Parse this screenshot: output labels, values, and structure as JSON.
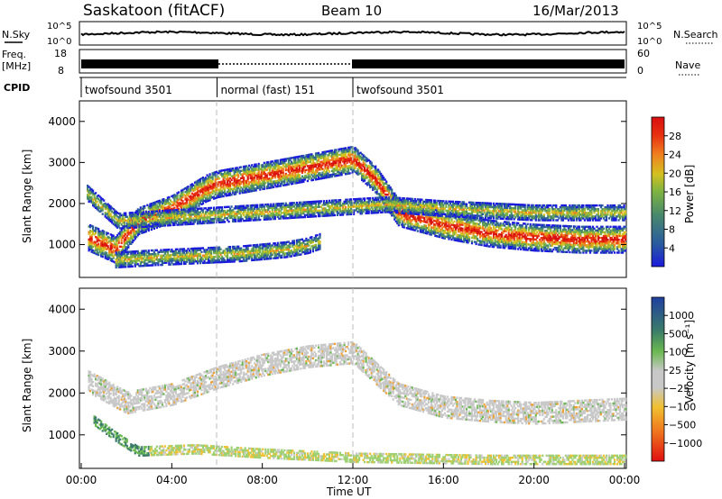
{
  "header": {
    "station": "Saskatoon (fitACF)",
    "beam": "Beam 10",
    "date": "16/Mar/2013"
  },
  "status_panel": {
    "nsky_label": "N.Sky",
    "nsky_tick_top": "10^5",
    "nsky_tick_bottom": "10^0",
    "nsearch_label": "N.Search",
    "nsearch_tick_top": "10^5",
    "nsearch_tick_bottom": "10^0",
    "freq_label_line1": "Freq.",
    "freq_label_line2": "[MHz]",
    "freq_tick_top": "18",
    "freq_tick_bottom": "8",
    "nave_label": "Nave",
    "nave_tick_top": "60",
    "nave_tick_bottom": "0",
    "cpid_label": "CPID",
    "cpid_segments": [
      {
        "label": "twofsound 3501",
        "start_hr": 0,
        "end_hr": 6
      },
      {
        "label": "normal (fast) 151",
        "start_hr": 6,
        "end_hr": 12
      },
      {
        "label": "twofsound 3501",
        "start_hr": 12,
        "end_hr": 24
      }
    ]
  },
  "chart_data": [
    {
      "type": "heatmap",
      "panel": "power",
      "ylabel": "Slant Range [km]",
      "xlim_hours": [
        0,
        24
      ],
      "ylim": [
        200,
        4500
      ],
      "y_ticks": [
        "1000",
        "2000",
        "3000",
        "4000"
      ],
      "colorbar_label": "Power [dB]",
      "colorbar_ticks": [
        "4",
        "8",
        "12",
        "16",
        "20",
        "24",
        "28"
      ],
      "colorbar_colors": [
        "#1a1adc",
        "#2a5aa0",
        "#4a8a6a",
        "#7cb342",
        "#d4c020",
        "#f08020",
        "#e83010",
        "#d81010"
      ],
      "echo_bands": [
        {
          "name": "main",
          "points": [
            [
              0.3,
              1200
            ],
            [
              1.5,
              900
            ],
            [
              2.5,
              1600
            ],
            [
              4,
              1900
            ],
            [
              5.5,
              2400
            ],
            [
              6,
              2500
            ],
            [
              8,
              2700
            ],
            [
              10,
              2900
            ],
            [
              11,
              3000
            ],
            [
              12,
              3100
            ],
            [
              13,
              2600
            ],
            [
              14,
              1800
            ],
            [
              16,
              1500
            ],
            [
              18,
              1300
            ],
            [
              20,
              1200
            ],
            [
              22,
              1150
            ],
            [
              24,
              1150
            ]
          ]
        },
        {
          "name": "upper",
          "points": [
            [
              0.2,
              2300
            ],
            [
              0.8,
              2000
            ],
            [
              1.6,
              1600
            ],
            [
              13.5,
              2000
            ],
            [
              16,
              1900
            ],
            [
              20,
              1800
            ],
            [
              24,
              1800
            ]
          ]
        },
        {
          "name": "lower",
          "points": [
            [
              1.5,
              650
            ],
            [
              3,
              700
            ],
            [
              5,
              750
            ],
            [
              7,
              800
            ],
            [
              9,
              900
            ],
            [
              10,
              1000
            ],
            [
              10.5,
              1100
            ]
          ]
        }
      ]
    },
    {
      "type": "heatmap",
      "panel": "velocity",
      "ylabel": "Slant Range [km]",
      "xlabel": "Time UT",
      "xlim_hours": [
        0,
        24
      ],
      "ylim": [
        200,
        4500
      ],
      "x_ticks": [
        "00:00",
        "04:00",
        "08:00",
        "12:00",
        "16:00",
        "20:00",
        "00:00"
      ],
      "y_ticks": [
        "1000",
        "2000",
        "3000",
        "4000"
      ],
      "colorbar_label": "Velocity [m s⁻¹]",
      "colorbar_ticks": [
        "1000",
        "500",
        "100",
        "25",
        "−25",
        "−100",
        "−500",
        "−1000"
      ],
      "colorbar_colors": [
        "#2040a0",
        "#3a7a6a",
        "#6ab850",
        "#9cd070",
        "#c8c8c8",
        "#f0c030",
        "#f08020",
        "#e84010",
        "#e01010"
      ],
      "echo_bands": [
        {
          "name": "ground-scatter",
          "points": [
            [
              0.3,
              2300
            ],
            [
              2,
              1800
            ],
            [
              4,
              2000
            ],
            [
              6,
              2400
            ],
            [
              8,
              2700
            ],
            [
              10,
              2900
            ],
            [
              12,
              3000
            ],
            [
              14,
              2000
            ],
            [
              16,
              1700
            ],
            [
              18,
              1600
            ],
            [
              20,
              1550
            ],
            [
              22,
              1600
            ],
            [
              24,
              1650
            ]
          ]
        },
        {
          "name": "near",
          "points": [
            [
              0.5,
              1400
            ],
            [
              1.5,
              1000
            ],
            [
              2.5,
              650
            ],
            [
              5,
              700
            ],
            [
              8,
              600
            ],
            [
              12,
              500
            ],
            [
              18,
              450
            ],
            [
              24,
              450
            ]
          ]
        }
      ]
    }
  ]
}
